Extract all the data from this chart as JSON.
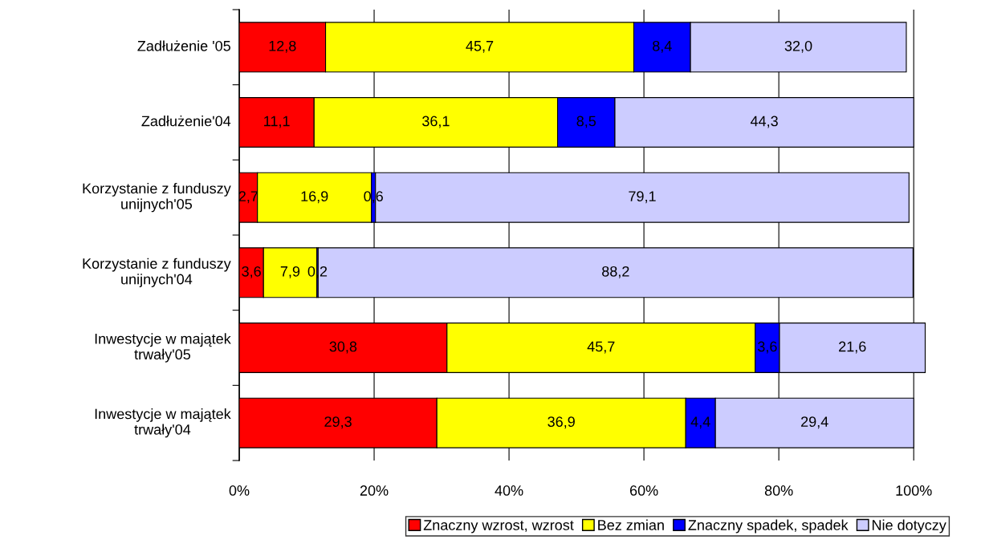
{
  "chart_data": {
    "type": "bar",
    "orientation": "horizontal",
    "stacked": true,
    "categories": [
      "Zadłużenie '05",
      "Zadłużenie'04",
      "Korzystanie z funduszy\nunijnych'05",
      "Korzystanie z funduszy\nunijnych'04",
      "Inwestycje w majątek\ntrwały'05",
      "Inwestycje w majątek\ntrwały'04"
    ],
    "series": [
      {
        "name": "Znaczny wzrost, wzrost",
        "color": "#ff0000",
        "values": [
          12.8,
          11.1,
          2.7,
          3.6,
          30.8,
          29.3
        ],
        "value_labels": [
          "12,8",
          "11,1",
          "2,7",
          "3,6",
          "30,8",
          "29,3"
        ]
      },
      {
        "name": "Bez zmian",
        "color": "#ffff00",
        "values": [
          45.7,
          36.1,
          16.9,
          7.9,
          45.7,
          36.9
        ],
        "value_labels": [
          "45,7",
          "36,1",
          "16,9",
          "7,9",
          "45,7",
          "36,9"
        ]
      },
      {
        "name": "Znaczny spadek, spadek",
        "color": "#0000ff",
        "values": [
          8.4,
          8.5,
          0.6,
          0.2,
          3.6,
          4.4
        ],
        "value_labels": [
          "8,4",
          "8,5",
          "0,6",
          "0,2",
          "3,6",
          "4,4"
        ]
      },
      {
        "name": "Nie dotyczy",
        "color": "#ccccff",
        "values": [
          32.0,
          44.3,
          79.1,
          88.2,
          21.6,
          29.4
        ],
        "value_labels": [
          "32,0",
          "44,3",
          "79,1",
          "88,2",
          "21,6",
          "29,4"
        ]
      }
    ],
    "xlim": [
      0,
      102
    ],
    "xticks": [
      {
        "value": 0,
        "label": "0%"
      },
      {
        "value": 20,
        "label": "20%"
      },
      {
        "value": 40,
        "label": "40%"
      },
      {
        "value": 60,
        "label": "60%"
      },
      {
        "value": 80,
        "label": "80%"
      },
      {
        "value": 100,
        "label": "100%"
      }
    ],
    "grid": "x",
    "legend": "bottom"
  }
}
